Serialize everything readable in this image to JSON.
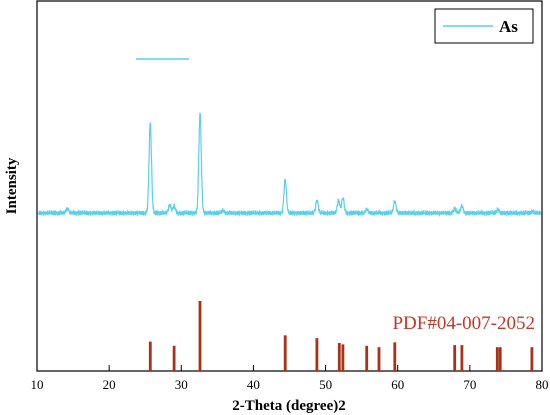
{
  "chart_data": {
    "type": "line",
    "xlabel": "2-Theta (degree)2",
    "ylabel": "Intensity",
    "xlim": [
      10,
      80
    ],
    "x_ticks": [
      "10",
      "20",
      "30",
      "40",
      "50",
      "60",
      "70",
      "80"
    ],
    "grid": false,
    "legend": {
      "position": "top-right",
      "entries": [
        "As"
      ]
    },
    "series": [
      {
        "name": "As",
        "color": "#5ad0e8",
        "baseline": 0,
        "noise": 0.03,
        "peaks": [
          {
            "x": 14.2,
            "y": 0.05
          },
          {
            "x": 25.7,
            "y": 1.0
          },
          {
            "x": 28.4,
            "y": 0.09
          },
          {
            "x": 29.0,
            "y": 0.08
          },
          {
            "x": 32.6,
            "y": 1.11
          },
          {
            "x": 35.8,
            "y": 0.03
          },
          {
            "x": 44.4,
            "y": 0.37
          },
          {
            "x": 48.8,
            "y": 0.14
          },
          {
            "x": 51.8,
            "y": 0.14
          },
          {
            "x": 52.4,
            "y": 0.17
          },
          {
            "x": 55.7,
            "y": 0.04
          },
          {
            "x": 59.6,
            "y": 0.13
          },
          {
            "x": 67.9,
            "y": 0.05
          },
          {
            "x": 68.9,
            "y": 0.08
          },
          {
            "x": 73.9,
            "y": 0.04
          },
          {
            "x": 78.7,
            "y": 0.02
          }
        ]
      },
      {
        "name": "PDF#04-007-2052",
        "color": "#a83218",
        "type": "stick",
        "sticks": [
          {
            "x": 25.7,
            "y": 0.42
          },
          {
            "x": 29.0,
            "y": 0.36
          },
          {
            "x": 32.6,
            "y": 1.0
          },
          {
            "x": 44.4,
            "y": 0.51
          },
          {
            "x": 48.8,
            "y": 0.47
          },
          {
            "x": 51.9,
            "y": 0.4
          },
          {
            "x": 52.4,
            "y": 0.38
          },
          {
            "x": 55.7,
            "y": 0.36
          },
          {
            "x": 57.4,
            "y": 0.34
          },
          {
            "x": 59.6,
            "y": 0.41
          },
          {
            "x": 67.9,
            "y": 0.37
          },
          {
            "x": 68.9,
            "y": 0.37
          },
          {
            "x": 73.8,
            "y": 0.34
          },
          {
            "x": 74.2,
            "y": 0.34
          },
          {
            "x": 78.6,
            "y": 0.34
          }
        ]
      }
    ],
    "annotations": [
      {
        "text": "PDF#04-007-2052",
        "color": "#c0392b"
      }
    ]
  }
}
